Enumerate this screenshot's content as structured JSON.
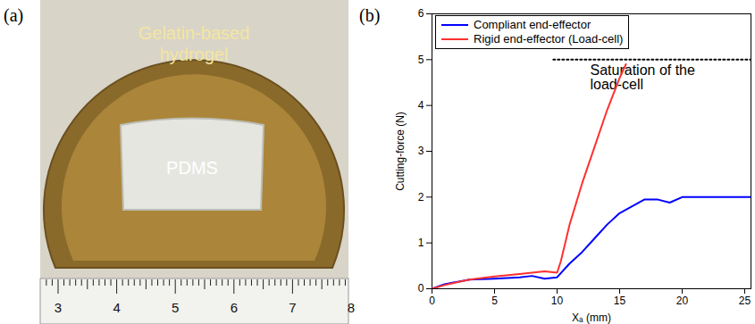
{
  "photo": {
    "label": "(a)",
    "texts": [
      "Gelatin-based hydrogel",
      "PDMS"
    ],
    "ruler_labels": [
      3,
      4,
      5,
      6,
      7,
      8
    ]
  },
  "chart_data": {
    "type": "line",
    "title": "(b)",
    "x_label": "Xₐ (mm)",
    "y_label": "Cutting-force (N)",
    "xlim": [
      0,
      25.5
    ],
    "xticks": [
      0,
      5,
      10,
      15,
      20,
      25
    ],
    "ylim": [
      0,
      6
    ],
    "yticks": [
      0,
      1,
      2,
      3,
      4,
      5,
      6
    ],
    "grid": false,
    "legend": "upper left",
    "series": [
      {
        "name": "Compliant end-effector",
        "color": "#0000ff",
        "x": [
          0,
          1,
          3,
          5,
          7,
          8,
          9,
          10,
          11,
          12,
          13,
          14,
          15,
          16,
          17,
          18,
          19,
          20,
          22,
          25.5
        ],
        "values": [
          0,
          0.1,
          0.2,
          0.22,
          0.25,
          0.28,
          0.22,
          0.25,
          0.55,
          0.8,
          1.1,
          1.4,
          1.65,
          1.8,
          1.95,
          1.95,
          1.88,
          2.0,
          2.0,
          2.0
        ]
      },
      {
        "name": "Rigid end-effector (Load-cell)",
        "color": "#ff3030",
        "x": [
          0,
          1,
          3,
          5,
          7,
          9,
          10,
          10.3,
          11,
          12,
          13,
          14,
          15,
          15.5
        ],
        "values": [
          0,
          0.08,
          0.2,
          0.27,
          0.32,
          0.38,
          0.35,
          0.6,
          1.4,
          2.3,
          3.1,
          3.9,
          4.6,
          4.9
        ]
      }
    ],
    "annotations": [
      {
        "text": "Saturation of the load-cell",
        "y": 5,
        "x": [
          9.7,
          25.5
        ],
        "line_style": "dotted"
      }
    ]
  }
}
